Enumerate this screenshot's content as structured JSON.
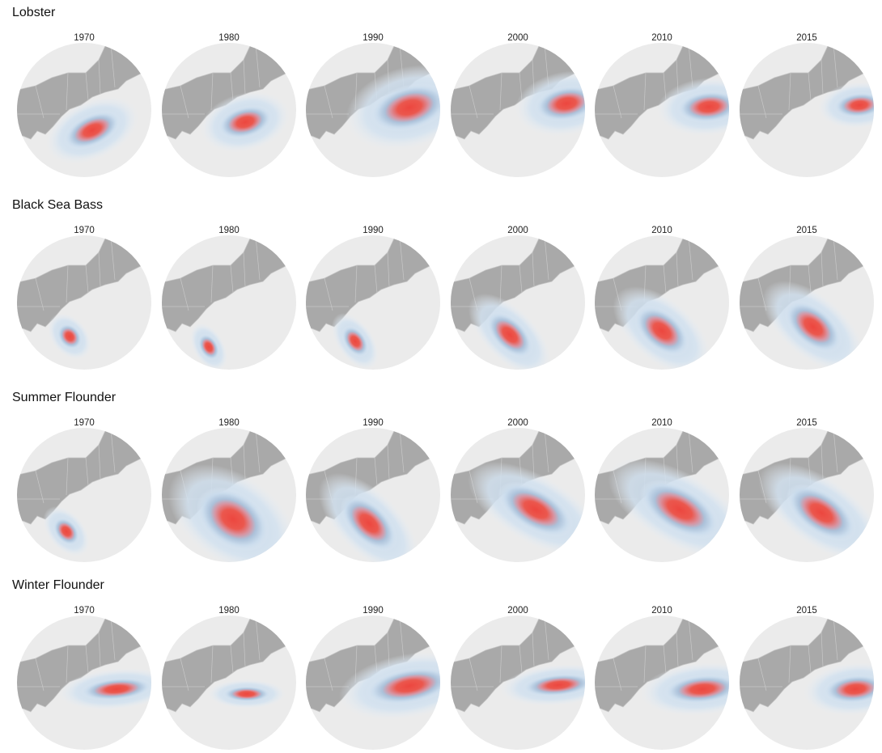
{
  "panels": [
    {
      "title": "Lobster",
      "years": [
        "1970",
        "1980",
        "1990",
        "2000",
        "2010",
        "2015"
      ]
    },
    {
      "title": "Black Sea Bass",
      "years": [
        "1970",
        "1980",
        "1990",
        "2000",
        "2010",
        "2015"
      ]
    },
    {
      "title": "Summer Flounder",
      "years": [
        "1970",
        "1980",
        "1990",
        "2000",
        "2010",
        "2015"
      ]
    },
    {
      "title": "Winter Flounder",
      "years": [
        "1970",
        "1980",
        "1990",
        "2000",
        "2010",
        "2015"
      ]
    }
  ]
}
